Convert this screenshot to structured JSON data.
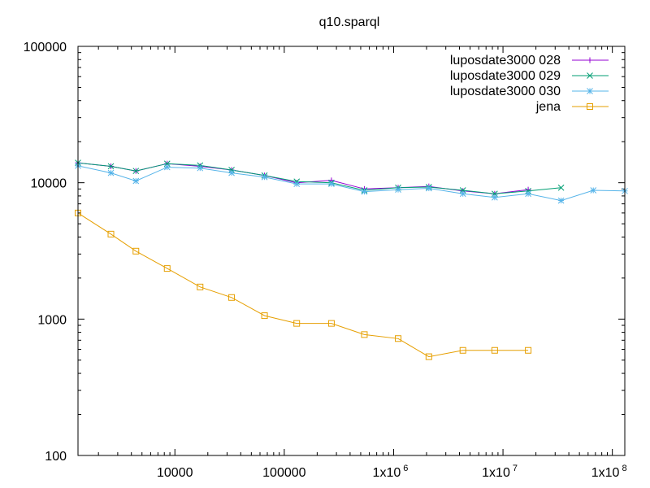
{
  "chart_data": {
    "type": "line",
    "title": "q10.sparql",
    "xlabel": "",
    "ylabel": "",
    "x_scale": "log",
    "y_scale": "log",
    "xlim": [
      1300,
      130000000
    ],
    "ylim": [
      100,
      100000
    ],
    "x_ticks": [
      {
        "value": 10000,
        "label": "10000"
      },
      {
        "value": 100000,
        "label": "100000"
      },
      {
        "value": 1000000,
        "base": "1x10",
        "exp": "6"
      },
      {
        "value": 10000000,
        "base": "1x10",
        "exp": "7"
      },
      {
        "value": 100000000,
        "base": "1x10",
        "exp": "8"
      }
    ],
    "y_ticks": [
      {
        "value": 100,
        "label": "100"
      },
      {
        "value": 1000,
        "label": "1000"
      },
      {
        "value": 10000,
        "label": "10000"
      },
      {
        "value": 100000,
        "label": "100000"
      }
    ],
    "grid": false,
    "legend_position": "top-right",
    "series": [
      {
        "name": "luposdate3000 028",
        "color": "#9400d3",
        "marker": "plus",
        "x": [
          1300,
          2600,
          4400,
          8500,
          17000,
          33000,
          66000,
          130000,
          270000,
          540000,
          1100000,
          2100000,
          4300000,
          8400000,
          17000000
        ],
        "y": [
          14000,
          13200,
          12200,
          13800,
          13200,
          12400,
          11300,
          10000,
          10400,
          9000,
          9200,
          9400,
          8700,
          8300,
          8900
        ]
      },
      {
        "name": "luposdate3000 029",
        "color": "#009e73",
        "marker": "cross",
        "x": [
          1300,
          2600,
          4400,
          8500,
          17000,
          33000,
          66000,
          130000,
          270000,
          540000,
          1100000,
          2100000,
          4300000,
          8400000,
          17000000,
          34000000
        ],
        "y": [
          14000,
          13200,
          12200,
          13800,
          13400,
          12400,
          11300,
          10200,
          10000,
          8800,
          9200,
          9300,
          8800,
          8300,
          8700,
          9200
        ]
      },
      {
        "name": "luposdate3000 030",
        "color": "#56b4e9",
        "marker": "star",
        "x": [
          1300,
          2600,
          4400,
          8500,
          17000,
          33000,
          66000,
          130000,
          270000,
          540000,
          1100000,
          2100000,
          4300000,
          8400000,
          17000000,
          34000000,
          67000000,
          130000000
        ],
        "y": [
          13300,
          11800,
          10300,
          13000,
          12800,
          11800,
          11000,
          9800,
          9800,
          8600,
          8900,
          9100,
          8300,
          7800,
          8300,
          7400,
          8800,
          8700
        ]
      },
      {
        "name": "jena",
        "color": "#e69f00",
        "marker": "square",
        "x": [
          1300,
          2600,
          4400,
          8500,
          17000,
          33000,
          66000,
          130000,
          270000,
          540000,
          1100000,
          2100000,
          4300000,
          8400000,
          17000000
        ],
        "y": [
          6000,
          4200,
          3150,
          2350,
          1720,
          1440,
          1060,
          930,
          930,
          770,
          720,
          530,
          590,
          590,
          590
        ]
      }
    ]
  }
}
